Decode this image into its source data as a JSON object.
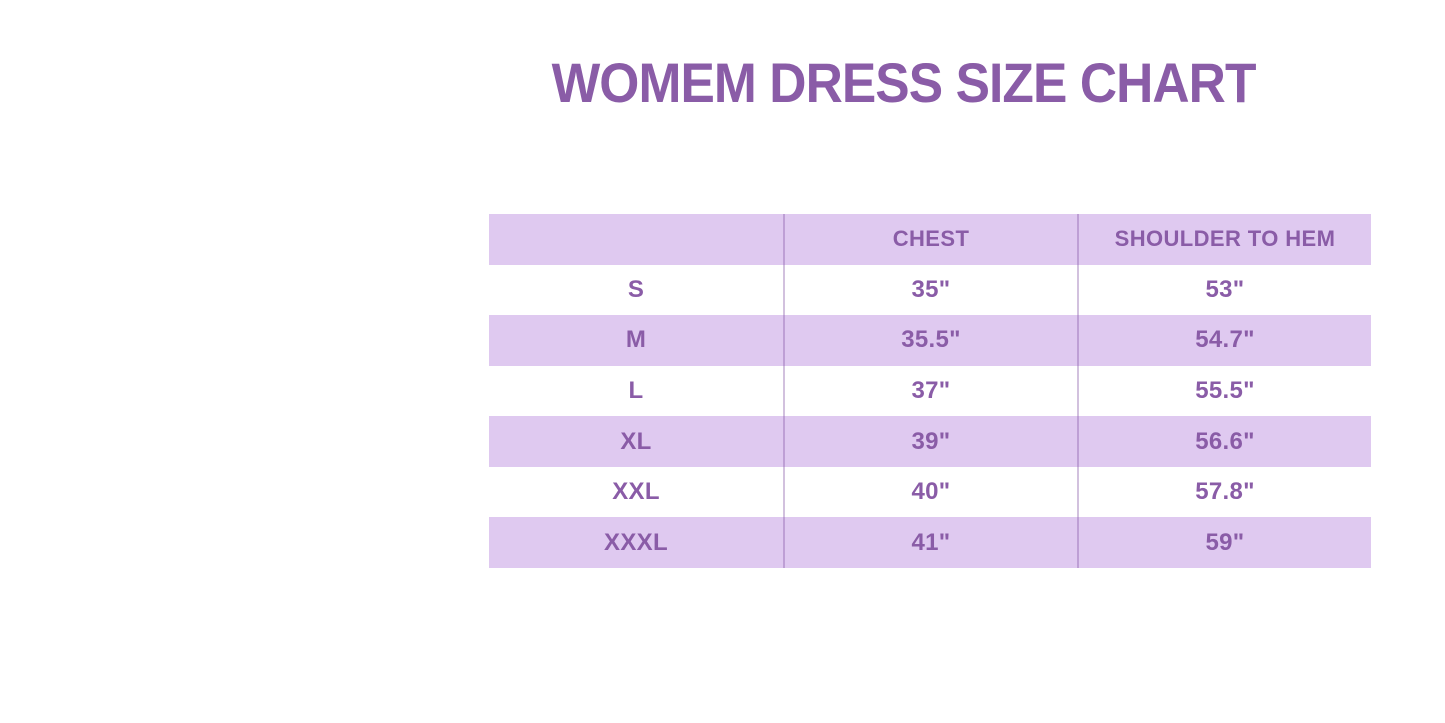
{
  "title": "WOMEM DRESS SIZE CHART",
  "colors": {
    "accent_purple": "#8A5CA7",
    "row_lavender": "#DFC9F0",
    "row_white": "#FFFFFF",
    "column_divider": "#B99CD9"
  },
  "table": {
    "columns": [
      "",
      "CHEST",
      "SHOULDER TO HEM"
    ],
    "rows": [
      {
        "size": "S",
        "chest": "35\"",
        "shoulder_to_hem": "53\""
      },
      {
        "size": "M",
        "chest": "35.5\"",
        "shoulder_to_hem": "54.7\""
      },
      {
        "size": "L",
        "chest": "37\"",
        "shoulder_to_hem": "55.5\""
      },
      {
        "size": "XL",
        "chest": "39\"",
        "shoulder_to_hem": "56.6\""
      },
      {
        "size": "XXL",
        "chest": "40\"",
        "shoulder_to_hem": "57.8\""
      },
      {
        "size": "XXXL",
        "chest": "41\"",
        "shoulder_to_hem": "59\""
      }
    ]
  },
  "chart_data": {
    "type": "table",
    "title": "WOMEM DRESS SIZE CHART",
    "columns": [
      "",
      "CHEST",
      "SHOULDER TO HEM"
    ],
    "rows": [
      [
        "S",
        "35\"",
        "53\""
      ],
      [
        "M",
        "35.5\"",
        "54.7\""
      ],
      [
        "L",
        "37\"",
        "55.5\""
      ],
      [
        "XL",
        "39\"",
        "56.6\""
      ],
      [
        "XXL",
        "40\"",
        "57.8\""
      ],
      [
        "XXXL",
        "41\"",
        "59\""
      ]
    ],
    "units": "inches",
    "layout": "alternating lavender/white rows, purple bold text, 3 equal columns"
  }
}
